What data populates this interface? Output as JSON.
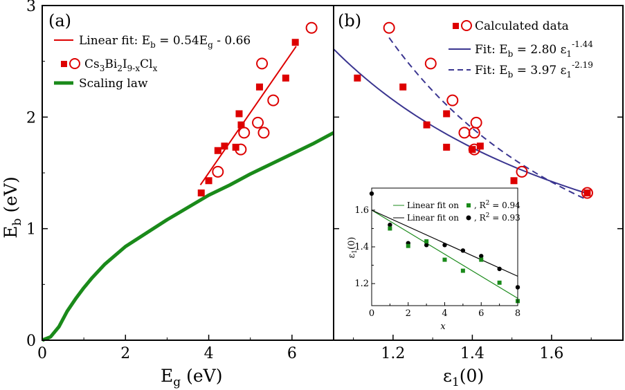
{
  "chart_data": [
    {
      "panel": "a",
      "type": "scatter",
      "panel_label": "(a)",
      "xlabel_main": "E",
      "xlabel_sub": "g",
      "xlabel_rest": " (eV)",
      "ylabel_main": "E",
      "ylabel_sub": "b",
      "ylabel_rest": " (eV)",
      "xlim": [
        0,
        7
      ],
      "ylim": [
        0,
        3
      ],
      "xticks": [
        "0",
        "2",
        "4",
        "6"
      ],
      "yticks": [
        "0",
        "1",
        "2",
        "3"
      ],
      "colors": {
        "red": "#dd0000",
        "green": "#1a8a1a"
      },
      "legend": {
        "fit_main": "Linear fit: E",
        "fit_sub": "b",
        "fit_rest": " = 0.54E",
        "fit_sub2": "g",
        "fit_rest2": " - 0.66",
        "mat_p1": "Cs",
        "mat_s1": "3",
        "mat_p2": "Bi",
        "mat_s2": "2",
        "mat_p3": "I",
        "mat_s3": "9-x",
        "mat_p4": "Cl",
        "mat_s4": "x",
        "scaling": "Scaling law"
      },
      "squares": [
        {
          "x": 3.82,
          "y": 1.32
        },
        {
          "x": 4.0,
          "y": 1.43
        },
        {
          "x": 4.22,
          "y": 1.7
        },
        {
          "x": 4.38,
          "y": 1.74
        },
        {
          "x": 4.65,
          "y": 1.73
        },
        {
          "x": 4.73,
          "y": 2.03
        },
        {
          "x": 4.78,
          "y": 1.93
        },
        {
          "x": 5.22,
          "y": 2.27
        },
        {
          "x": 5.85,
          "y": 2.35
        },
        {
          "x": 6.08,
          "y": 2.67
        }
      ],
      "circles": [
        {
          "x": 4.22,
          "y": 1.51
        },
        {
          "x": 4.77,
          "y": 1.71
        },
        {
          "x": 4.85,
          "y": 1.86
        },
        {
          "x": 5.18,
          "y": 1.95
        },
        {
          "x": 5.32,
          "y": 1.86
        },
        {
          "x": 5.28,
          "y": 2.48
        },
        {
          "x": 5.55,
          "y": 2.15
        },
        {
          "x": 6.47,
          "y": 2.8
        }
      ],
      "linear_fit": {
        "slope": 0.54,
        "intercept": -0.66,
        "x_range": [
          3.8,
          6.1
        ]
      },
      "scaling_law": [
        {
          "x": 0.0,
          "y": 0.0
        },
        {
          "x": 0.2,
          "y": 0.03
        },
        {
          "x": 0.4,
          "y": 0.12
        },
        {
          "x": 0.6,
          "y": 0.26
        },
        {
          "x": 0.8,
          "y": 0.37
        },
        {
          "x": 1.0,
          "y": 0.47
        },
        {
          "x": 1.2,
          "y": 0.56
        },
        {
          "x": 1.5,
          "y": 0.68
        },
        {
          "x": 2.0,
          "y": 0.84
        },
        {
          "x": 2.5,
          "y": 0.96
        },
        {
          "x": 3.0,
          "y": 1.08
        },
        {
          "x": 3.5,
          "y": 1.19
        },
        {
          "x": 4.0,
          "y": 1.3
        },
        {
          "x": 4.5,
          "y": 1.39
        },
        {
          "x": 5.0,
          "y": 1.49
        },
        {
          "x": 5.5,
          "y": 1.58
        },
        {
          "x": 6.0,
          "y": 1.67
        },
        {
          "x": 6.5,
          "y": 1.76
        },
        {
          "x": 7.0,
          "y": 1.86
        }
      ]
    },
    {
      "panel": "b",
      "type": "scatter",
      "panel_label": "(b)",
      "xlabel_main": "ε",
      "xlabel_sub": "1",
      "xlabel_rest": "(0)",
      "xlim": [
        1.05,
        1.78
      ],
      "ylim": [
        0,
        3
      ],
      "xticks": [
        {
          "v": 1.2,
          "label": "1.2"
        },
        {
          "v": 1.4,
          "label": "1.4"
        },
        {
          "v": 1.6,
          "label": "1.6"
        }
      ],
      "colors": {
        "red": "#dd0000",
        "navy": "#3a3590"
      },
      "legend": {
        "calc": "Calculated data",
        "fit1_main": "Fit: E",
        "fit1_sub": "b",
        "fit1_rest": " = 2.80 ε",
        "fit1_sub2": "1",
        "fit1_sup": "-1.44",
        "fit2_main": "Fit: E",
        "fit2_sub": "b",
        "fit2_rest": " = 3.97 ε",
        "fit2_sub2": "1",
        "fit2_sup": "-2.19"
      },
      "squares": [
        {
          "x": 1.11,
          "y": 2.35
        },
        {
          "x": 1.225,
          "y": 2.27
        },
        {
          "x": 1.285,
          "y": 1.93
        },
        {
          "x": 1.335,
          "y": 2.03
        },
        {
          "x": 1.335,
          "y": 1.73
        },
        {
          "x": 1.4,
          "y": 1.71
        },
        {
          "x": 1.42,
          "y": 1.74
        },
        {
          "x": 1.505,
          "y": 1.43
        },
        {
          "x": 1.69,
          "y": 1.32
        }
      ],
      "circles": [
        {
          "x": 1.19,
          "y": 2.8
        },
        {
          "x": 1.295,
          "y": 2.48
        },
        {
          "x": 1.35,
          "y": 2.15
        },
        {
          "x": 1.38,
          "y": 1.86
        },
        {
          "x": 1.405,
          "y": 1.86
        },
        {
          "x": 1.41,
          "y": 1.95
        },
        {
          "x": 1.405,
          "y": 1.71
        },
        {
          "x": 1.525,
          "y": 1.51
        },
        {
          "x": 1.69,
          "y": 1.32
        }
      ],
      "fit_solid": {
        "a": 2.8,
        "b": -1.44,
        "x_range": [
          1.05,
          1.69
        ]
      },
      "fit_dashed": {
        "a": 3.97,
        "b": -2.19,
        "x_range": [
          1.19,
          1.69
        ]
      }
    },
    {
      "panel": "inset",
      "type": "scatter",
      "xlabel": "x",
      "ylabel_main": "ε",
      "ylabel_sub": "1",
      "ylabel_rest": "(0)",
      "xlim": [
        0,
        8
      ],
      "ylim": [
        1.08,
        1.72
      ],
      "xticks": [
        "0",
        "2",
        "4",
        "6",
        "8"
      ],
      "yticks": [
        {
          "v": 1.2,
          "label": "1.2"
        },
        {
          "v": 1.4,
          "label": "1.4"
        },
        {
          "v": 1.6,
          "label": "1.6"
        }
      ],
      "colors": {
        "green": "#1a8a1a",
        "black": "#000000"
      },
      "legend": {
        "green_text": "Linear fit on",
        "green_r2": ", R",
        "green_r2_sup": "2",
        "green_r2_val": " = 0.94",
        "black_text": "Linear fit on",
        "black_r2": ", R",
        "black_r2_sup": "2",
        "black_r2_val": " = 0.93"
      },
      "green_points": [
        {
          "x": 1,
          "y": 1.5
        },
        {
          "x": 2,
          "y": 1.405
        },
        {
          "x": 3,
          "y": 1.43
        },
        {
          "x": 4,
          "y": 1.33
        },
        {
          "x": 5,
          "y": 1.27
        },
        {
          "x": 6,
          "y": 1.33
        },
        {
          "x": 7,
          "y": 1.205
        },
        {
          "x": 8,
          "y": 1.105
        }
      ],
      "black_points": [
        {
          "x": 0,
          "y": 1.69
        },
        {
          "x": 1,
          "y": 1.52
        },
        {
          "x": 2,
          "y": 1.42
        },
        {
          "x": 3,
          "y": 1.41
        },
        {
          "x": 4,
          "y": 1.41
        },
        {
          "x": 5,
          "y": 1.38
        },
        {
          "x": 6,
          "y": 1.35
        },
        {
          "x": 7,
          "y": 1.28
        },
        {
          "x": 8,
          "y": 1.18
        }
      ],
      "green_fit": {
        "y0": 1.6,
        "y8": 1.12
      },
      "black_fit": {
        "y0": 1.6,
        "y8": 1.24
      }
    }
  ]
}
